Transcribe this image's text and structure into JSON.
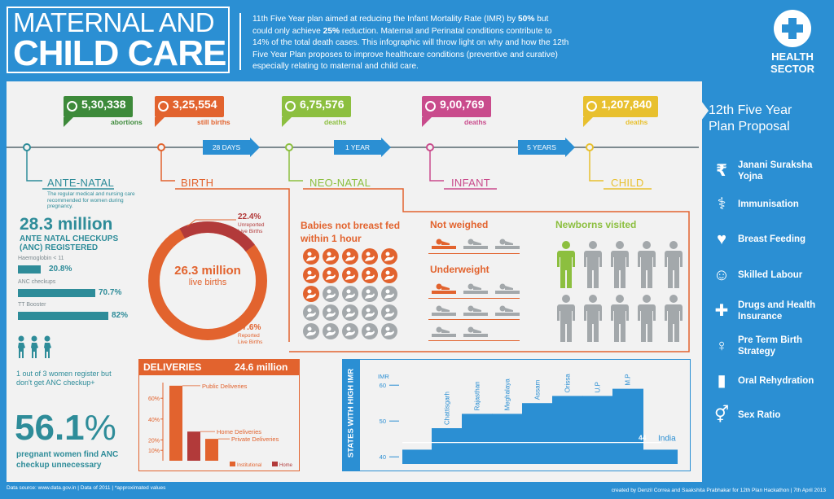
{
  "header": {
    "title_line1": "MATERNAL AND",
    "title_line2": "CHILD CARE",
    "intro_parts": [
      "11th Five Year plan aimed at reducing the Infant Mortality Rate (IMR) by ",
      "50%",
      " but could only achieve ",
      "25%",
      " reduction. Maternal and Perinatal conditions contribute to 14% of the  total death cases. This infographic will throw light on why and how the 12th Five Year Plan proposes to improve healthcare conditions (preventive and curative) especially relating to maternal and child care."
    ],
    "sector_label_line1": "HEALTH",
    "sector_label_line2": "SECTOR"
  },
  "timeline": {
    "flags": [
      {
        "value": "5,30,338",
        "label": "abortions",
        "color": "#3d8a3a"
      },
      {
        "value": "3,25,554",
        "label": "still births",
        "color": "#e2632e"
      },
      {
        "value": "6,75,576",
        "label": "deaths",
        "color": "#8cbf3f"
      },
      {
        "value": "9,00,769",
        "label": "deaths",
        "color": "#c94b8c"
      },
      {
        "value": "1,207,840",
        "label": "deaths",
        "color": "#e8c02e"
      }
    ],
    "arrows": [
      "28 DAYS",
      "1 YEAR",
      "5 YEARS"
    ],
    "stages": [
      {
        "label": "ANTE-NATAL",
        "color": "#2e8c99"
      },
      {
        "label": "BIRTH",
        "color": "#e2632e"
      },
      {
        "label": "NEO-NATAL",
        "color": "#8cbf3f"
      },
      {
        "label": "INFANT",
        "color": "#c94b8c"
      },
      {
        "label": "CHILD",
        "color": "#e8c02e"
      }
    ],
    "antenatal_note": "The regular medical and nursing care recommended for women during pregnancy."
  },
  "antenatal": {
    "big_value": "28.3 million",
    "caption_line1": "ANTE NATAL CHECKUPS",
    "caption_line2": "(ANC) REGISTERED",
    "bars": [
      {
        "label": "Haemoglobin < 11",
        "value": "20.8%",
        "pct": 20.8
      },
      {
        "label": "ANC checkups",
        "value": "70.7%",
        "pct": 70.7
      },
      {
        "label": "TT Booster",
        "value": "82%",
        "pct": 82
      }
    ],
    "women_note_line1": "1 out of 3 women register but",
    "women_note_line2": "don't get ANC checkup+",
    "big_pct": "56.1",
    "pct_sign": "%",
    "big_pct_caption_line1": "pregnant women find ANC",
    "big_pct_caption_line2": "checkup unnecessary"
  },
  "births": {
    "total_value": "26.3 million",
    "total_label": "live births",
    "unreported_pct": "22.4%",
    "unreported_label_line1": "Unreported",
    "unreported_label_line2": "Live Births",
    "reported_pct": "77.6%",
    "reported_label_line1": "Reported",
    "reported_label_line2": "Live Births",
    "unreported_fraction": 0.224
  },
  "neonatal": {
    "not_breastfed_title_line1": "Babies not breast fed",
    "not_breastfed_title_line2": "within 1 hour",
    "not_weighed_title": "Not weighed",
    "underweight_title": "Underweight",
    "visited_title": "Newborns visited"
  },
  "deliveries": {
    "title": "DELIVERIES",
    "total": "24.6 million",
    "y_ticks": [
      "60%",
      "40%",
      "20%",
      "10%"
    ],
    "labels": [
      "Public Deliveries",
      "Home Deliveries",
      "Private Deliveries"
    ],
    "legend": [
      "Institutional",
      "Home"
    ],
    "values": [
      {
        "name": "Public Deliveries",
        "pct": 72
      },
      {
        "name": "Home Deliveries",
        "pct": 28
      },
      {
        "name": "Private Deliveries",
        "pct": 21
      }
    ]
  },
  "imr_chart": {
    "side_title": "STATES WITH HIGH IMR",
    "y_label": "IMR",
    "y_ticks": [
      "60",
      "50",
      "40"
    ],
    "india_label": "India",
    "india_value": "44",
    "states": [
      {
        "name": "Chattisgarh",
        "imr": 48
      },
      {
        "name": "Rajasthan",
        "imr": 52
      },
      {
        "name": "Meghalaya",
        "imr": 52
      },
      {
        "name": "Assam",
        "imr": 55
      },
      {
        "name": "Orissa",
        "imr": 57
      },
      {
        "name": "U.P",
        "imr": 57
      },
      {
        "name": "M.P",
        "imr": 59
      }
    ]
  },
  "proposal": {
    "title_line1": "12th Five Year",
    "title_line2": "Plan Proposal",
    "items": [
      {
        "label_line1": "Janani Suraksha",
        "label_line2": "Yojna",
        "icon": "rupee-icon"
      },
      {
        "label_line1": "Immunisation",
        "label_line2": "",
        "icon": "syringe-icon"
      },
      {
        "label_line1": "Breast Feeding",
        "label_line2": "",
        "icon": "mother-baby-icon"
      },
      {
        "label_line1": "Skilled Labour",
        "label_line2": "",
        "icon": "doctor-icon"
      },
      {
        "label_line1": "Drugs and Health",
        "label_line2": "Insurance",
        "icon": "medicine-icon"
      },
      {
        "label_line1": "Pre Term Birth",
        "label_line2": "Strategy",
        "icon": "pregnant-icon"
      },
      {
        "label_line1": "Oral Rehydration",
        "label_line2": "",
        "icon": "ors-icon"
      },
      {
        "label_line1": "Sex Ratio",
        "label_line2": "",
        "icon": "gender-icon"
      }
    ]
  },
  "footer": {
    "left": "Data source: www.data.gov.in | Data of 2011 | *approximated values",
    "right": "created by Denzil Correa and Saakshita Prabhakar for 12th Plan Hackathon | 7th April 2013"
  }
}
